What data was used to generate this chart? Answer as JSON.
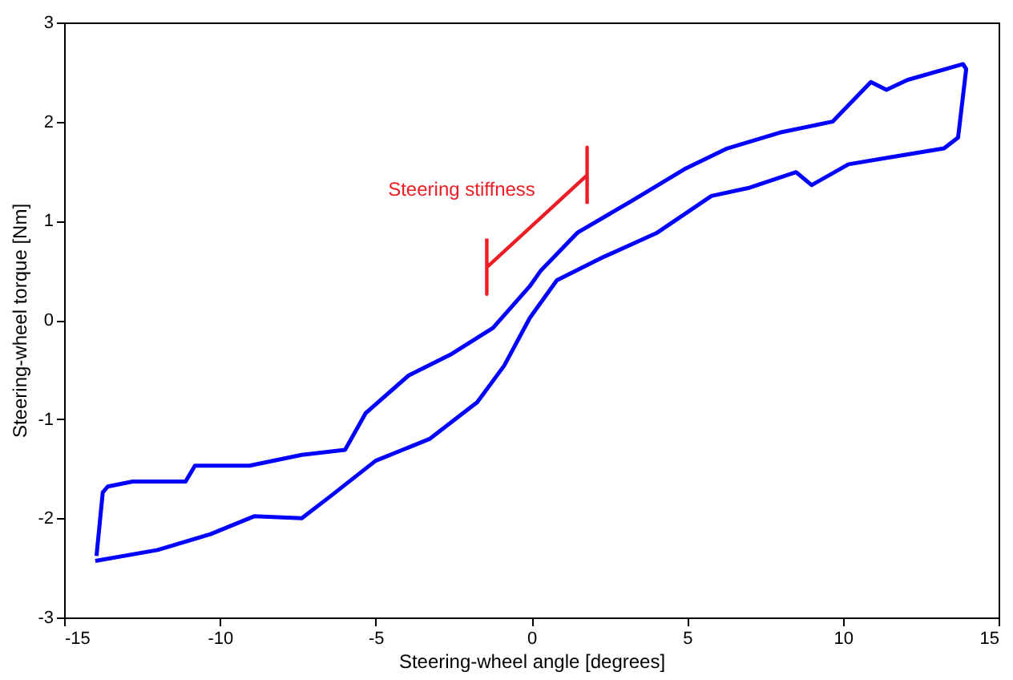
{
  "chart_data": {
    "type": "line",
    "xlabel": "Steering-wheel angle [degrees]",
    "ylabel": "Steering-wheel torque [Nm]",
    "xlim": [
      -15,
      15
    ],
    "xticks": [
      -15,
      -10,
      -5,
      0,
      5,
      10,
      15
    ],
    "ylim": [
      -3,
      3
    ],
    "yticks": [
      -3,
      -2,
      -1,
      0,
      1,
      2,
      3
    ],
    "annotations": [
      "Steering stiffness"
    ],
    "series": [
      {
        "type": "line",
        "color": "#0000ff",
        "x": [
          -14.0,
          -12.0,
          -10.3,
          -8.9,
          -7.37,
          -6.5,
          -5.0,
          -3.27,
          -1.74,
          -0.87,
          -0.05,
          0.82,
          2.35,
          4.04,
          5.78,
          6.96,
          8.5,
          9.0,
          10.18,
          11.7,
          13.25,
          13.7,
          13.96,
          13.86,
          12.07,
          11.4,
          10.9,
          9.67,
          7.98,
          6.29,
          4.91,
          3.22,
          1.48,
          0.31,
          -0.05,
          -1.23,
          -2.6,
          -3.94,
          -5.32,
          -5.98,
          -7.37,
          -9.05,
          -10.8,
          -11.1,
          -12.8,
          -13.6,
          -13.76,
          -13.96
        ],
        "values": [
          -2.43,
          -2.32,
          -2.16,
          -1.98,
          -2.0,
          -1.79,
          -1.42,
          -1.2,
          -0.83,
          -0.46,
          0.02,
          0.4,
          0.64,
          0.88,
          1.25,
          1.33,
          1.49,
          1.36,
          1.57,
          1.65,
          1.73,
          1.84,
          2.53,
          2.58,
          2.42,
          2.32,
          2.4,
          2.0,
          1.89,
          1.73,
          1.52,
          1.2,
          0.88,
          0.5,
          0.34,
          -0.08,
          -0.35,
          -0.56,
          -0.94,
          -1.31,
          -1.36,
          -1.47,
          -1.47,
          -1.63,
          -1.63,
          -1.68,
          -1.74,
          -2.38
        ]
      },
      {
        "type": "line",
        "color": "#ee1c24",
        "x": [
          -1.43,
          -1.43,
          -1.43,
          1.79,
          1.79,
          1.79
        ],
        "values": [
          0.82,
          0.26,
          0.53,
          1.46,
          1.74,
          1.17
        ]
      }
    ]
  }
}
